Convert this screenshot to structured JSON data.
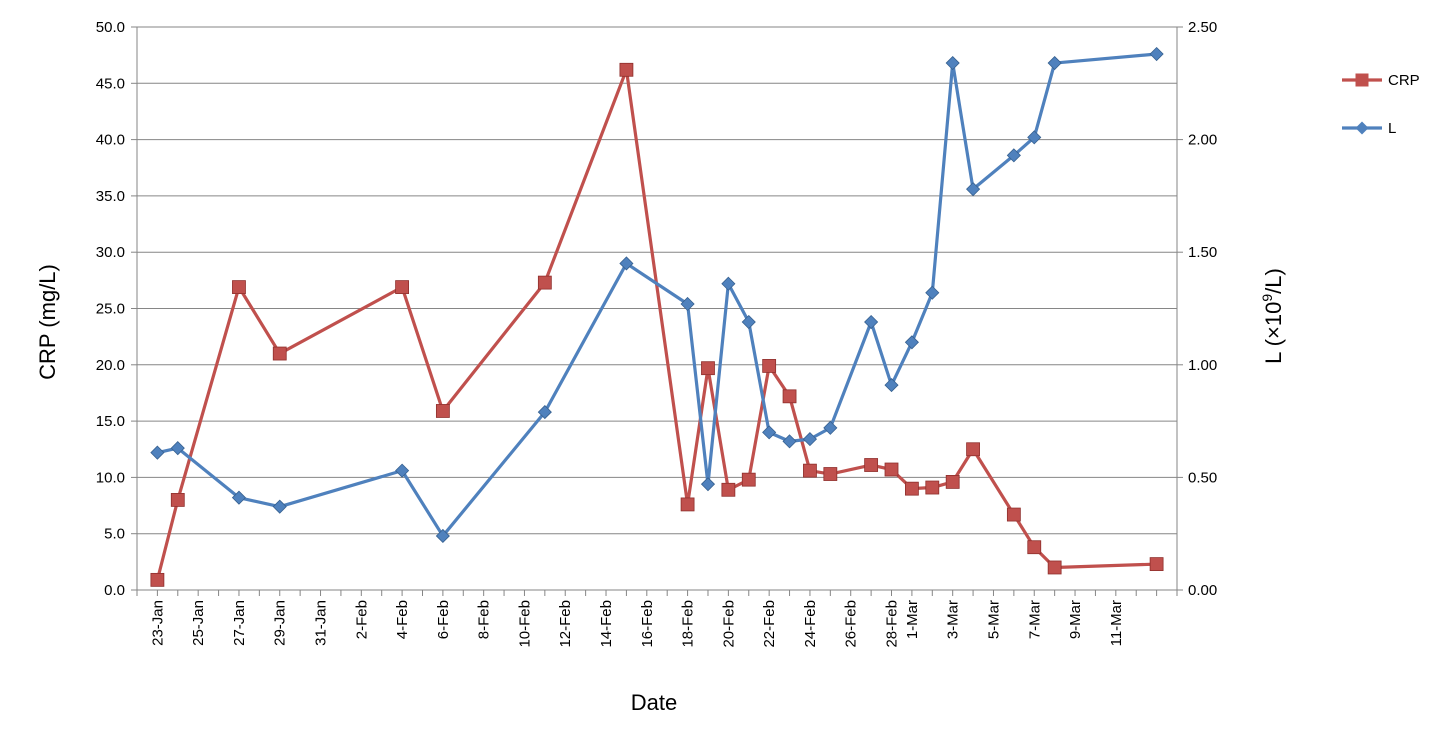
{
  "chart_data": {
    "type": "line",
    "x_unit": "date",
    "x_ticks": [
      "23-Jan",
      "25-Jan",
      "27-Jan",
      "29-Jan",
      "31-Jan",
      "2-Feb",
      "4-Feb",
      "6-Feb",
      "8-Feb",
      "10-Feb",
      "12-Feb",
      "14-Feb",
      "16-Feb",
      "18-Feb",
      "20-Feb",
      "22-Feb",
      "24-Feb",
      "26-Feb",
      "28-Feb",
      "1-Mar",
      "3-Mar",
      "5-Mar",
      "7-Mar",
      "9-Mar",
      "11-Mar"
    ],
    "xlabel": "Date",
    "ylabel": "CRP (mg/L)",
    "y2label_main": "L (",
    "y2label_x": "×",
    "y2label_ten": "10",
    "y2label_exp": "9",
    "y2label_end": "/L)",
    "ylim": [
      0,
      50
    ],
    "y_ticks": [
      "0.0",
      "5.0",
      "10.0",
      "15.0",
      "20.0",
      "25.0",
      "30.0",
      "35.0",
      "40.0",
      "45.0",
      "50.0"
    ],
    "y2lim": [
      0,
      2.5
    ],
    "y2_ticks": [
      "0.00",
      "0.50",
      "1.00",
      "1.50",
      "2.00",
      "2.50"
    ],
    "grid": true,
    "legend_position": "right",
    "series": [
      {
        "name": "CRP",
        "axis": "left",
        "color": "#C0504D",
        "marker": "square",
        "points": [
          [
            "23-Jan",
            0.9
          ],
          [
            "24-Jan",
            8.0
          ],
          [
            "27-Jan",
            26.9
          ],
          [
            "29-Jan",
            21.0
          ],
          [
            "4-Feb",
            26.9
          ],
          [
            "6-Feb",
            15.9
          ],
          [
            "11-Feb",
            27.3
          ],
          [
            "15-Feb",
            46.2
          ],
          [
            "18-Feb",
            7.6
          ],
          [
            "19-Feb",
            19.7
          ],
          [
            "20-Feb",
            8.9
          ],
          [
            "21-Feb",
            9.8
          ],
          [
            "22-Feb",
            19.9
          ],
          [
            "23-Feb",
            17.2
          ],
          [
            "24-Feb",
            10.6
          ],
          [
            "25-Feb",
            10.3
          ],
          [
            "27-Feb",
            11.1
          ],
          [
            "28-Feb",
            10.7
          ],
          [
            "1-Mar",
            9.0
          ],
          [
            "2-Mar",
            9.1
          ],
          [
            "3-Mar",
            9.6
          ],
          [
            "4-Mar",
            12.5
          ],
          [
            "6-Mar",
            6.7
          ],
          [
            "7-Mar",
            3.8
          ],
          [
            "8-Mar",
            2.0
          ],
          [
            "13-Mar",
            2.3
          ]
        ]
      },
      {
        "name": "L",
        "axis": "right",
        "color": "#4F81BD",
        "marker": "diamond",
        "points": [
          [
            "23-Jan",
            0.61
          ],
          [
            "24-Jan",
            0.63
          ],
          [
            "27-Jan",
            0.41
          ],
          [
            "29-Jan",
            0.37
          ],
          [
            "4-Feb",
            0.53
          ],
          [
            "6-Feb",
            0.24
          ],
          [
            "11-Feb",
            0.79
          ],
          [
            "15-Feb",
            1.45
          ],
          [
            "18-Feb",
            1.27
          ],
          [
            "19-Feb",
            0.47
          ],
          [
            "20-Feb",
            1.36
          ],
          [
            "21-Feb",
            1.19
          ],
          [
            "22-Feb",
            0.7
          ],
          [
            "23-Feb",
            0.66
          ],
          [
            "24-Feb",
            0.67
          ],
          [
            "25-Feb",
            0.72
          ],
          [
            "27-Feb",
            1.19
          ],
          [
            "28-Feb",
            0.91
          ],
          [
            "1-Mar",
            1.1
          ],
          [
            "2-Mar",
            1.32
          ],
          [
            "3-Mar",
            2.34
          ],
          [
            "4-Mar",
            1.78
          ],
          [
            "6-Mar",
            1.93
          ],
          [
            "7-Mar",
            2.01
          ],
          [
            "8-Mar",
            2.34
          ],
          [
            "13-Mar",
            2.38
          ]
        ]
      }
    ]
  }
}
